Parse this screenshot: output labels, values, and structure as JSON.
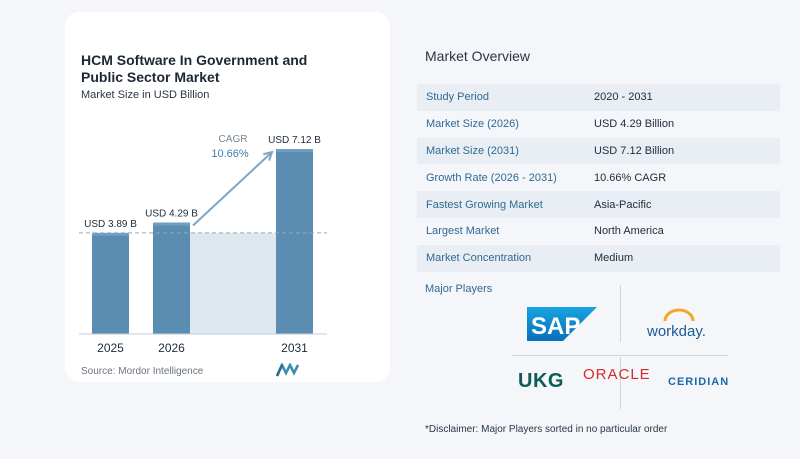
{
  "chart": {
    "title": "HCM Software In Government and Public Sector Market",
    "subtitle": "Market Size in USD Billion",
    "source": "Source: Mordor Intelligence",
    "cagr_label": "CAGR",
    "cagr_value": "10.66%"
  },
  "chart_data": {
    "type": "bar",
    "categories": [
      "2025",
      "2026",
      "2031"
    ],
    "values": [
      3.89,
      4.29,
      7.12
    ],
    "value_labels": [
      "USD 3.89 B",
      "USD 4.29 B",
      "USD 7.12 B"
    ],
    "ylim": [
      0,
      7.12
    ],
    "baseline_reference": 3.89,
    "title": "HCM Software In Government and Public Sector Market",
    "xlabel": "",
    "ylabel": "Market Size in USD Billion",
    "annotations": [
      {
        "text": "CAGR 10.66%",
        "from": "2026",
        "to": "2031"
      }
    ],
    "colors": {
      "bar": "#5b8db3",
      "bar_top": "#6f9ec2",
      "shade": "#dde8f1",
      "arrow": "#7ea5c6"
    }
  },
  "overview": {
    "title": "Market Overview",
    "rows": [
      {
        "label": "Study Period",
        "value": "2020 - 2031"
      },
      {
        "label": "Market Size (2026)",
        "value": "USD 4.29 Billion"
      },
      {
        "label": "Market Size (2031)",
        "value": "USD 7.12 Billion"
      },
      {
        "label": "Growth Rate (2026 - 2031)",
        "value": "10.66% CAGR"
      },
      {
        "label": "Fastest Growing Market",
        "value": "Asia-Pacific"
      },
      {
        "label": "Largest Market",
        "value": "North America"
      },
      {
        "label": "Market Concentration",
        "value": "Medium"
      }
    ]
  },
  "players": {
    "label": "Major Players",
    "logos": {
      "sap": "SAP",
      "workday": "workday.",
      "ukg": "UKG",
      "oracle": "ORACLE",
      "ceridian": "CERIDIAN"
    }
  },
  "disclaimer": "*Disclaimer: Major Players sorted in no particular order"
}
